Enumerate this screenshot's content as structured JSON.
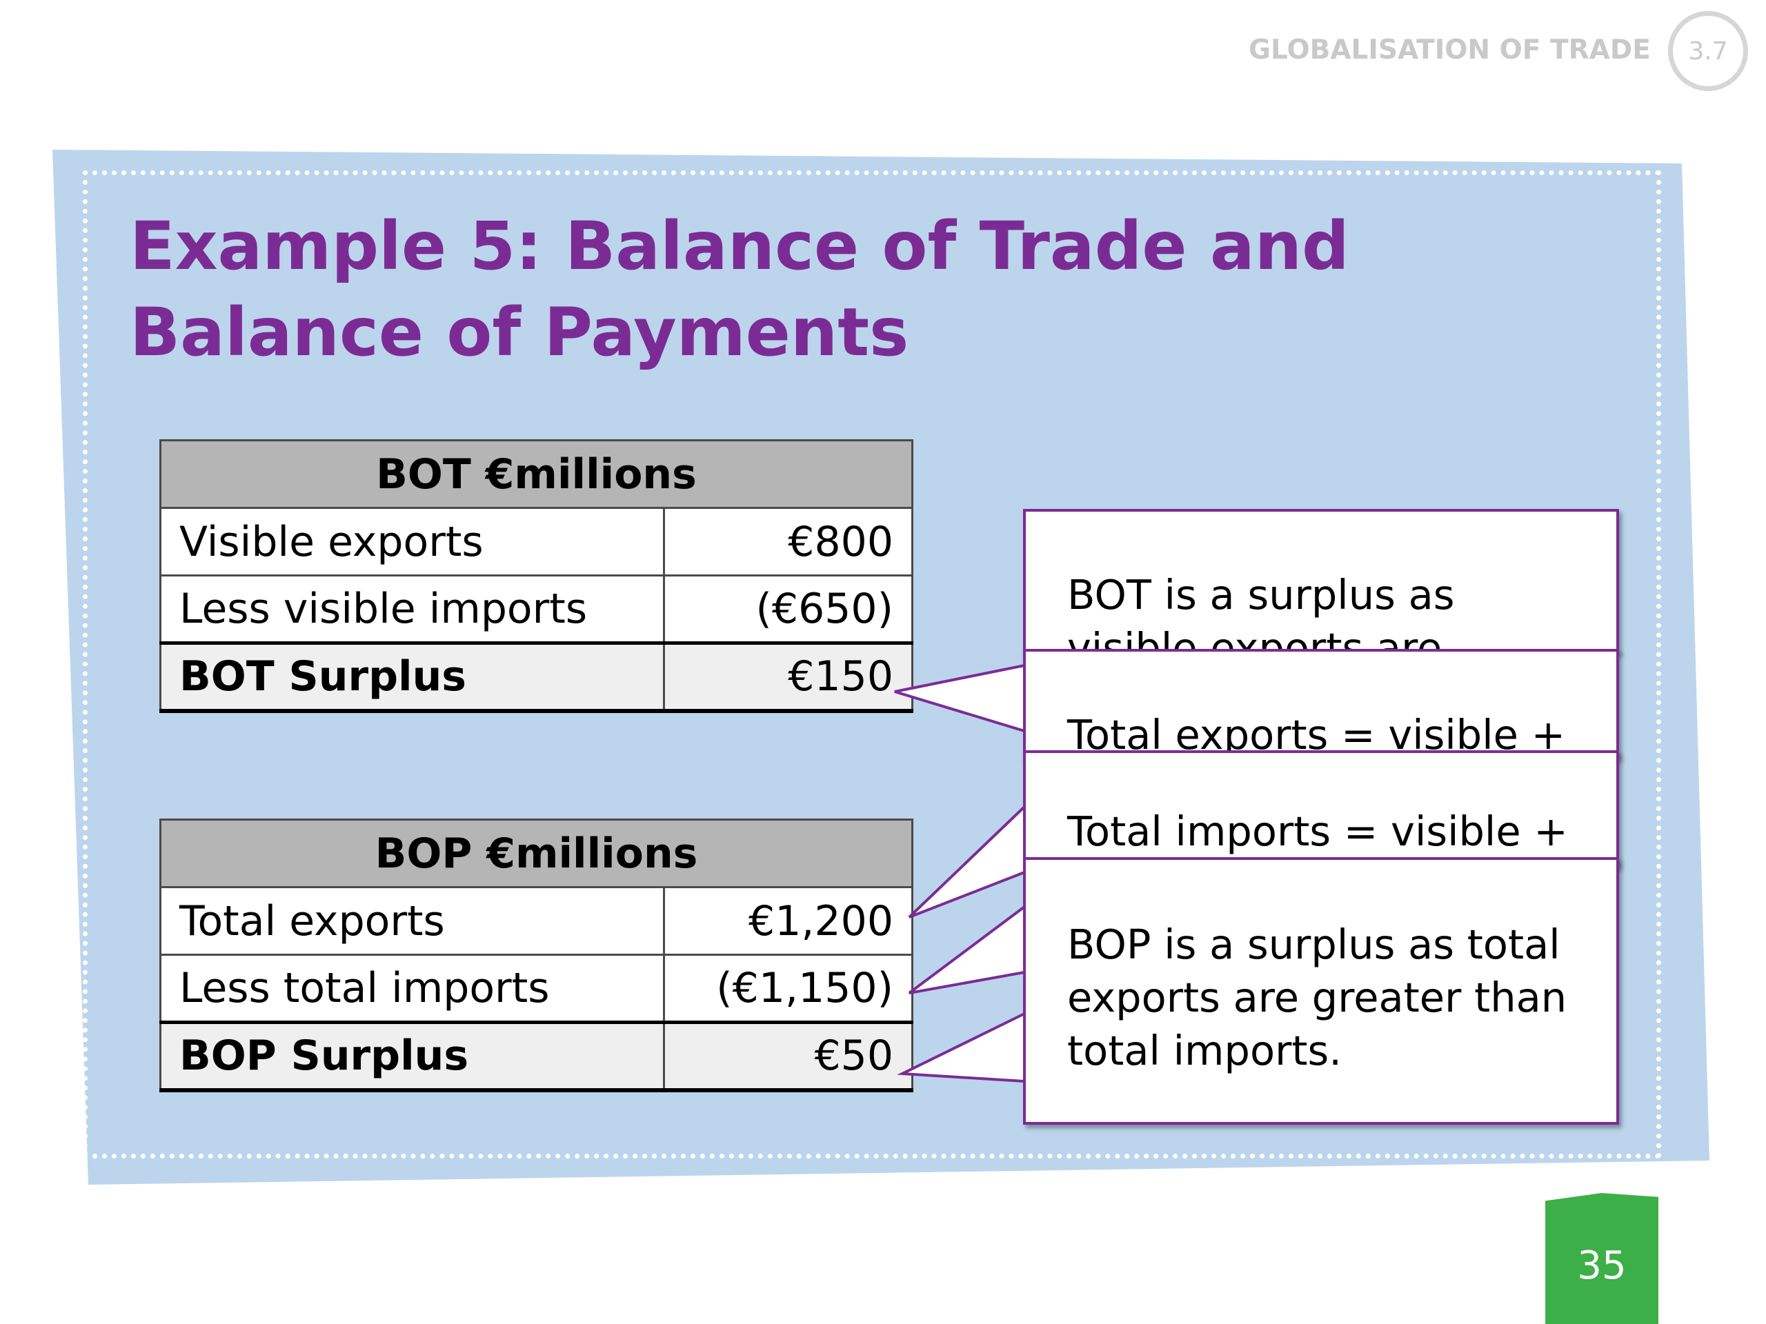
{
  "header": {
    "section_title": "GLOBALISATION OF TRADE",
    "section_number": "3.7"
  },
  "slide": {
    "title": "Example 5: Balance of Trade and Balance of Payments",
    "page_number": "35"
  },
  "bot_table": {
    "header": "BOT €millions",
    "rows": [
      {
        "label": "Visible exports",
        "value": "€800"
      },
      {
        "label": "Less visible imports",
        "value": "(€650)"
      }
    ],
    "total": {
      "label": "BOT Surplus",
      "value": "€150"
    }
  },
  "bop_table": {
    "header": "BOP €millions",
    "rows": [
      {
        "label": "Total exports",
        "value": "€1,200"
      },
      {
        "label": "Less total imports",
        "value": "(€1,150)"
      }
    ],
    "total": {
      "label": "BOP Surplus",
      "value": "€50"
    }
  },
  "callouts": [
    {
      "text": "BOT is a surplus as visible exports are greater than"
    },
    {
      "text": "Total exports = visible +"
    },
    {
      "text": "Total imports = visible +"
    },
    {
      "text": "BOP is a surplus as total exports are greater than total imports."
    }
  ],
  "colors": {
    "title": "#7b2c94",
    "board_background": "#bcd5ec",
    "callout_border": "#7b2c94",
    "page_tab": "#3daf48",
    "table_header": "#b5b5b5"
  }
}
